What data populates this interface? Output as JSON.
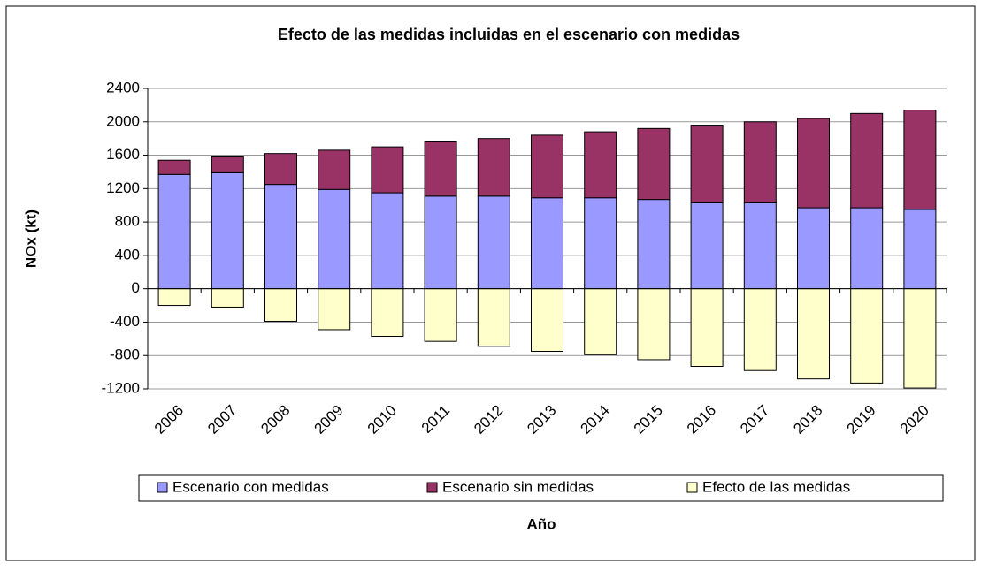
{
  "chart_data": {
    "type": "stacked_bar",
    "title": "Efecto de las medidas incluidas en el escenario con medidas",
    "x_label": "Año",
    "y_label": "NOx (kt)",
    "categories": [
      "2006",
      "2007",
      "2008",
      "2009",
      "2010",
      "2011",
      "2012",
      "2013",
      "2014",
      "2015",
      "2016",
      "2017",
      "2018",
      "2019",
      "2020"
    ],
    "series": [
      {
        "name": "Escenario con medidas",
        "color": "#9999ff",
        "values": [
          1370,
          1390,
          1250,
          1190,
          1150,
          1110,
          1110,
          1090,
          1090,
          1070,
          1030,
          1030,
          970,
          970,
          950
        ]
      },
      {
        "name": "Escenario sin medidas",
        "color": "#993366",
        "values": [
          170,
          190,
          370,
          470,
          550,
          650,
          690,
          750,
          790,
          850,
          930,
          970,
          1070,
          1130,
          1190
        ]
      },
      {
        "name": "Efecto de las medidas",
        "color": "#ffffcc",
        "values": [
          -200,
          -220,
          -390,
          -490,
          -570,
          -630,
          -690,
          -750,
          -790,
          -850,
          -930,
          -980,
          -1080,
          -1130,
          -1190
        ]
      }
    ],
    "ylim": [
      -1200,
      2400
    ],
    "yticks": [
      -1200,
      -800,
      -400,
      0,
      400,
      800,
      1200,
      1600,
      2000,
      2400
    ],
    "grid": true,
    "legend": "bottom"
  }
}
